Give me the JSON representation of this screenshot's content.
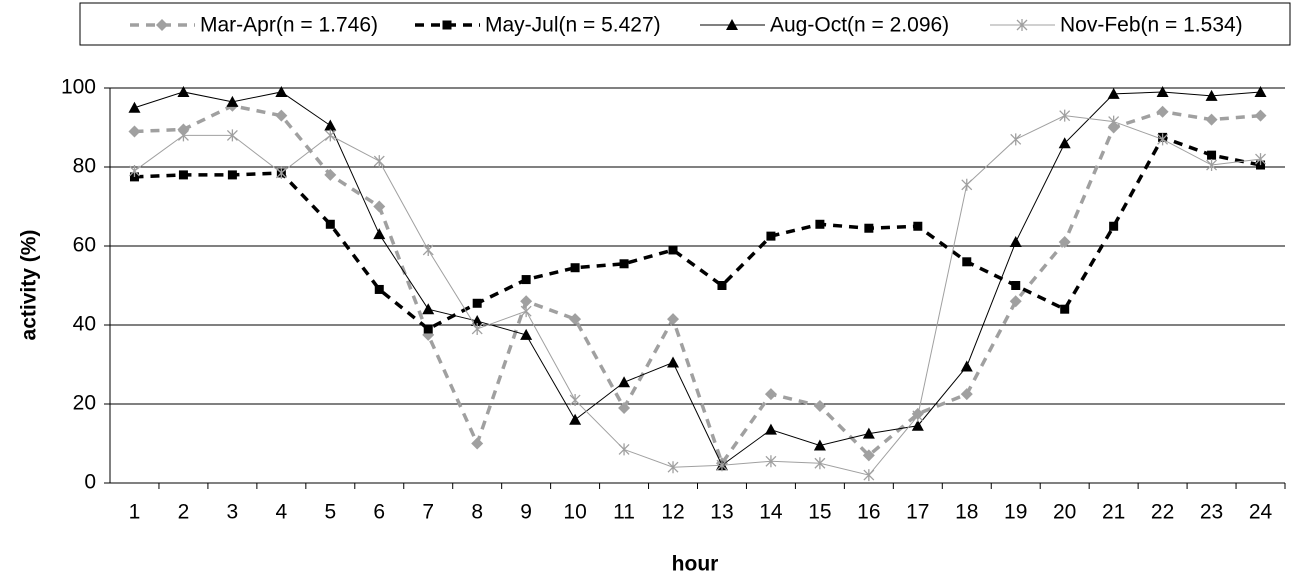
{
  "chart_data": {
    "type": "line",
    "x_label": "hour",
    "y_label": "activity (%)",
    "categories": [
      "1",
      "2",
      "3",
      "4",
      "5",
      "6",
      "7",
      "8",
      "9",
      "10",
      "11",
      "12",
      "13",
      "14",
      "15",
      "16",
      "17",
      "18",
      "19",
      "20",
      "21",
      "22",
      "23",
      "24"
    ],
    "series": [
      {
        "name": "Mar-Apr(n = 1.746)",
        "color": "#a0a0a0",
        "dash": true,
        "marker": "diamond",
        "values": [
          89,
          89.5,
          95.5,
          93,
          78,
          70,
          37.5,
          10,
          46,
          41.5,
          19,
          41.5,
          5,
          22.5,
          19.5,
          7,
          17.5,
          22.5,
          46,
          61,
          90,
          94,
          92,
          93
        ]
      },
      {
        "name": "May-Jul(n = 5.427)",
        "color": "#000000",
        "dash": true,
        "marker": "square",
        "values": [
          77.5,
          78,
          78,
          78.5,
          65.5,
          49,
          39,
          45.5,
          51.5,
          54.5,
          55.5,
          59,
          50,
          62.5,
          65.5,
          64.5,
          65,
          56,
          50,
          44,
          65,
          87.5,
          83,
          80.5
        ]
      },
      {
        "name": "Aug-Oct(n = 2.096)",
        "color": "#000000",
        "dash": false,
        "marker": "triangle",
        "values": [
          95,
          99,
          96.5,
          99,
          90.5,
          63,
          44,
          41,
          37.5,
          16,
          25.5,
          30.5,
          4.5,
          13.5,
          9.5,
          12.5,
          14.5,
          29.5,
          61,
          86,
          98.5,
          99,
          98,
          99
        ]
      },
      {
        "name": "Nov-Feb(n = 1.534)",
        "color": "#a0a0a0",
        "dash": false,
        "marker": "star",
        "values": [
          79,
          88,
          88,
          78.5,
          88,
          81.5,
          59,
          39,
          43.5,
          21,
          8.5,
          4,
          4.5,
          5.5,
          5,
          2,
          17,
          75.5,
          87,
          93,
          91.5,
          87,
          80.5,
          82
        ]
      }
    ],
    "ylim": [
      0,
      100
    ],
    "yticks": [
      0,
      20,
      40,
      60,
      80,
      100
    ],
    "grid": true,
    "legend": "top"
  }
}
